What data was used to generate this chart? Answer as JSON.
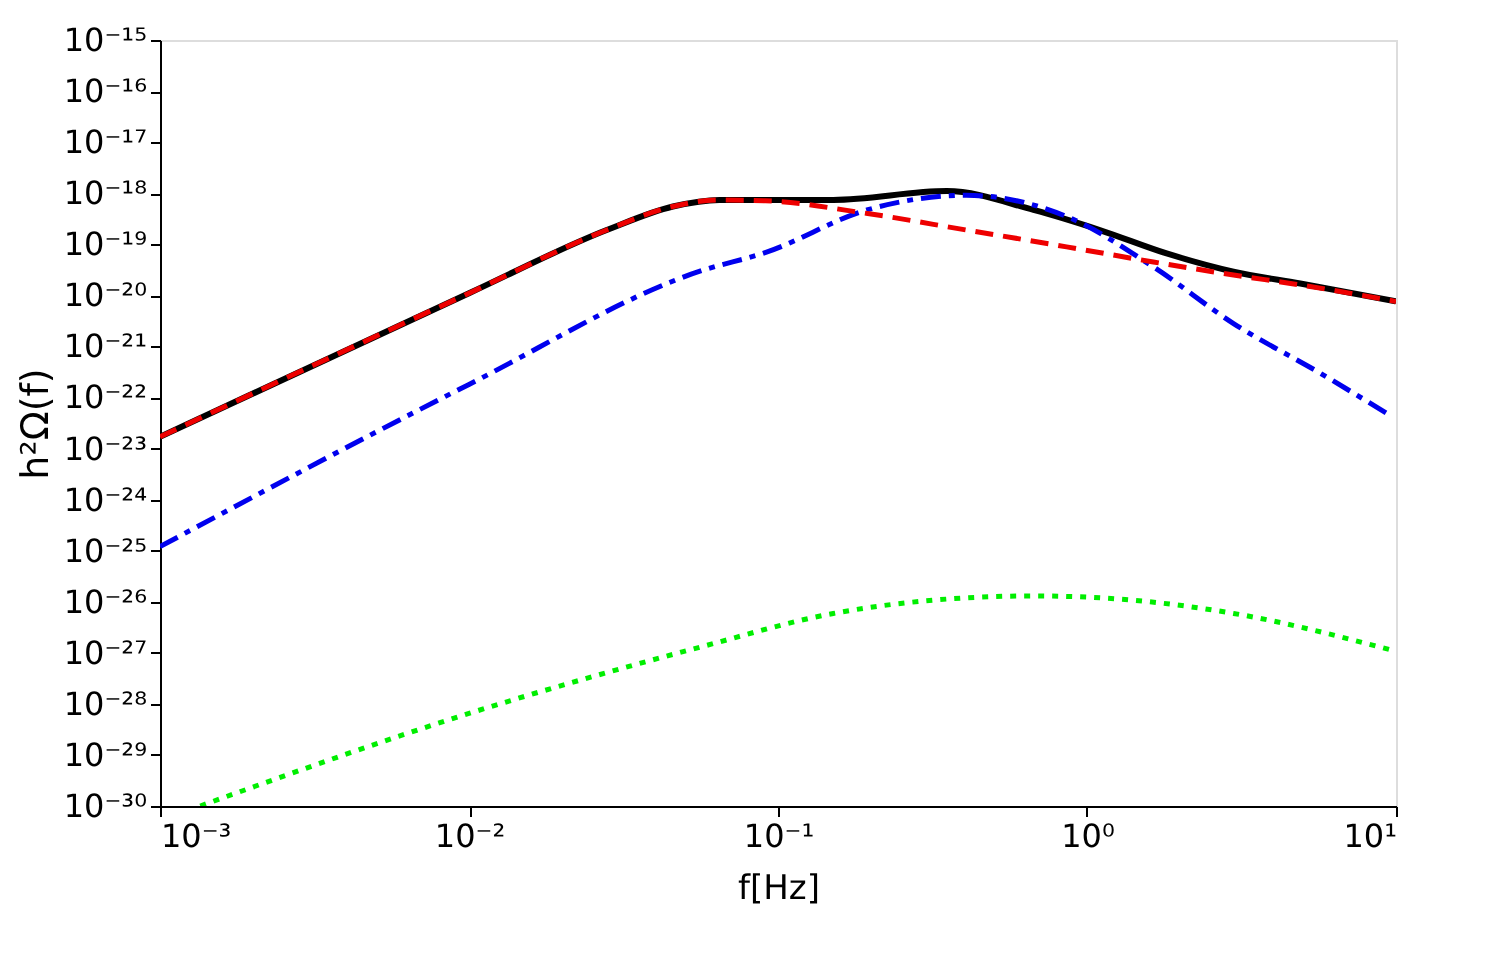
{
  "chart_data": {
    "type": "line",
    "xlabel": "f[Hz]",
    "ylabel": "h²Ω(f)",
    "log": "xy",
    "grid": false,
    "marker": "none",
    "xlim": [
      0.001,
      10
    ],
    "ylim": [
      1e-30,
      1e-15
    ],
    "xticks": [
      {
        "value": 0.001,
        "label": "10⁻³"
      },
      {
        "value": 0.01,
        "label": "10⁻²"
      },
      {
        "value": 0.1,
        "label": "10⁻¹"
      },
      {
        "value": 1,
        "label": "10⁰"
      },
      {
        "value": 10,
        "label": "10¹"
      }
    ],
    "yticks": [
      {
        "value": 1e-15,
        "label": "10⁻¹⁵"
      },
      {
        "value": 1e-16,
        "label": "10⁻¹⁶"
      },
      {
        "value": 1e-17,
        "label": "10⁻¹⁷"
      },
      {
        "value": 1e-18,
        "label": "10⁻¹⁸"
      },
      {
        "value": 1e-19,
        "label": "10⁻¹⁹"
      },
      {
        "value": 1e-20,
        "label": "10⁻²⁰"
      },
      {
        "value": 1e-21,
        "label": "10⁻²¹"
      },
      {
        "value": 1e-22,
        "label": "10⁻²²"
      },
      {
        "value": 1e-23,
        "label": "10⁻²³"
      },
      {
        "value": 1e-24,
        "label": "10⁻²⁴"
      },
      {
        "value": 1e-25,
        "label": "10⁻²⁵"
      },
      {
        "value": 1e-26,
        "label": "10⁻²⁶"
      },
      {
        "value": 1e-27,
        "label": "10⁻²⁷"
      },
      {
        "value": 1e-28,
        "label": "10⁻²⁸"
      },
      {
        "value": 1e-29,
        "label": "10⁻²⁹"
      },
      {
        "value": 1e-30,
        "label": "10⁻³⁰"
      }
    ],
    "series": [
      {
        "color": "#000000",
        "line_style": "solid",
        "x": [
          0.001,
          0.01,
          0.0279,
          0.0457,
          0.0646,
          0.151,
          0.352,
          0.671,
          1.1,
          1.81,
          2.98,
          4.9,
          10
        ],
        "values": [
          1.7e-23,
          1.1e-20,
          1.9e-19,
          5.5e-19,
          7.4e-19,
          7.4e-19,
          1.1e-18,
          4.7e-19,
          1.9e-19,
          6.6e-20,
          2.9e-20,
          1.7e-20,
          7.6e-21
        ]
      },
      {
        "color": "#00ee00",
        "line_style": "dotted",
        "x": [
          0.00135,
          0.01,
          0.0562,
          0.151,
          0.316,
          0.671,
          1.41,
          2.98,
          10
        ],
        "values": [
          1e-30,
          6.5e-29,
          1.3e-27,
          5.9e-27,
          1.07e-26,
          1.3e-26,
          1.07e-26,
          5.9e-27,
          1.07e-27
        ]
      },
      {
        "color": "#0000ee",
        "line_style": "dashdot",
        "x": [
          0.001,
          0.01,
          0.0562,
          0.0918,
          0.194,
          0.407,
          0.859,
          1.64,
          2.98,
          5.68,
          9.33
        ],
        "values": [
          1.2e-25,
          1.8e-22,
          3e-20,
          7e-20,
          4.7e-19,
          9.1e-19,
          3.5e-19,
          3.6e-20,
          2.8e-21,
          3e-22,
          4.9e-23
        ]
      },
      {
        "color": "#ee0000",
        "line_style": "dashed",
        "x": [
          0.001,
          0.01,
          0.0279,
          0.0457,
          0.0646,
          0.0912,
          0.195,
          0.407,
          0.859,
          1.64,
          2.98,
          4.9,
          10
        ],
        "values": [
          1.7e-23,
          1.1e-20,
          1.9e-19,
          5.5e-19,
          7.4e-19,
          7.1e-19,
          4e-19,
          1.9e-19,
          8.9e-20,
          4.5e-20,
          2.5e-20,
          1.6e-20,
          7.6e-21
        ]
      }
    ]
  }
}
